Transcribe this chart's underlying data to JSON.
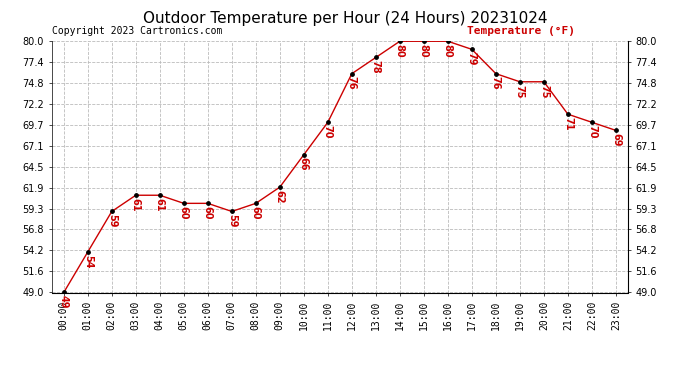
{
  "title": "Outdoor Temperature per Hour (24 Hours) 20231024",
  "copyright": "Copyright 2023 Cartronics.com",
  "legend_label": "Temperature (°F)",
  "hours": [
    "00:00",
    "01:00",
    "02:00",
    "03:00",
    "04:00",
    "05:00",
    "06:00",
    "07:00",
    "08:00",
    "09:00",
    "10:00",
    "11:00",
    "12:00",
    "13:00",
    "14:00",
    "15:00",
    "16:00",
    "17:00",
    "18:00",
    "19:00",
    "20:00",
    "21:00",
    "22:00",
    "23:00"
  ],
  "temps": [
    49,
    54,
    59,
    61,
    61,
    60,
    60,
    59,
    60,
    62,
    66,
    70,
    76,
    78,
    80,
    80,
    80,
    79,
    76,
    75,
    75,
    71,
    70,
    69
  ],
  "line_color": "#cc0000",
  "marker_color": "#000000",
  "label_color": "#cc0000",
  "grid_color": "#bbbbbb",
  "bg_color": "#ffffff",
  "title_color": "#000000",
  "copyright_color": "#000000",
  "legend_color": "#cc0000",
  "yticks": [
    49.0,
    51.6,
    54.2,
    56.8,
    59.3,
    61.9,
    64.5,
    67.1,
    69.7,
    72.2,
    74.8,
    77.4,
    80.0
  ],
  "title_fontsize": 11,
  "label_fontsize": 7,
  "copyright_fontsize": 7,
  "legend_fontsize": 8,
  "tick_fontsize": 7
}
